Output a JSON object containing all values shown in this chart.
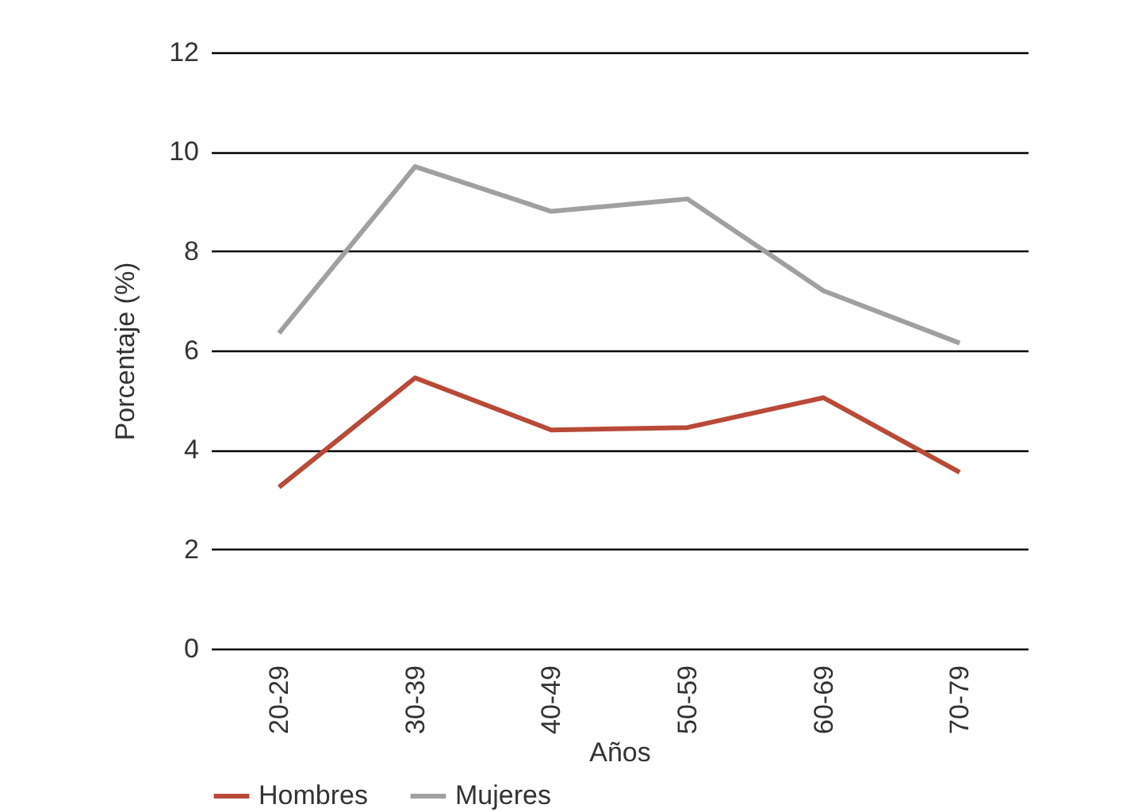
{
  "chart_data": {
    "type": "line",
    "xlabel": "Años",
    "ylabel": "Porcentaje (%)",
    "categories": [
      "20-29",
      "30-39",
      "40-49",
      "50-59",
      "60-69",
      "70-79"
    ],
    "series": [
      {
        "name": "Hombres",
        "color": "#b84a37",
        "values": [
          3.25,
          5.45,
          4.4,
          4.45,
          5.05,
          3.55
        ]
      },
      {
        "name": "Mujeres",
        "color": "#a0a0a0",
        "values": [
          6.35,
          9.7,
          8.8,
          9.05,
          7.2,
          6.15
        ]
      }
    ],
    "ylim": [
      0,
      12
    ],
    "yticks": [
      0,
      2,
      4,
      6,
      8,
      10,
      12
    ],
    "grid": "y",
    "legend": "bottom",
    "line_style": "solid"
  }
}
